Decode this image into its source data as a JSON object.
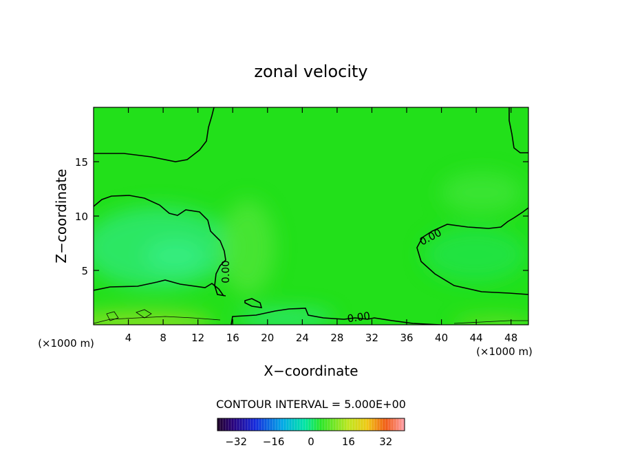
{
  "chart_data": {
    "type": "heatmap",
    "title": "zonal velocity",
    "xlabel": "X−coordinate",
    "ylabel": "Z−coordinate",
    "x_unit_left": "(×1000 m)",
    "x_unit_right": "(×1000 m)",
    "xlim": [
      0,
      50
    ],
    "ylim": [
      0,
      20
    ],
    "x_ticks": [
      4,
      8,
      12,
      16,
      20,
      24,
      28,
      32,
      36,
      40,
      44,
      48
    ],
    "x_tick_labels": [
      "4",
      "8",
      "12",
      "16",
      "20",
      "24",
      "28",
      "32",
      "36",
      "40",
      "44",
      "48"
    ],
    "y_ticks": [
      5,
      10,
      15
    ],
    "y_tick_labels": [
      "5",
      "10",
      "15"
    ],
    "contour_interval_text": "CONTOUR INTERVAL = 5.000E+00",
    "contour_labels": [
      "0.00",
      "0.00",
      "0.00"
    ],
    "colorbar": {
      "range": [
        -40,
        40
      ],
      "ticks": [
        -32,
        -16,
        0,
        16,
        32
      ],
      "tick_labels": [
        "−32",
        "−16",
        "0",
        "16",
        "32"
      ]
    },
    "colors": {
      "field_base": "#22e01a",
      "field_light": "#4fe63a",
      "field_teal": "#2fe872",
      "field_yellowgreen": "#8ee025",
      "contour": "#000000"
    }
  }
}
